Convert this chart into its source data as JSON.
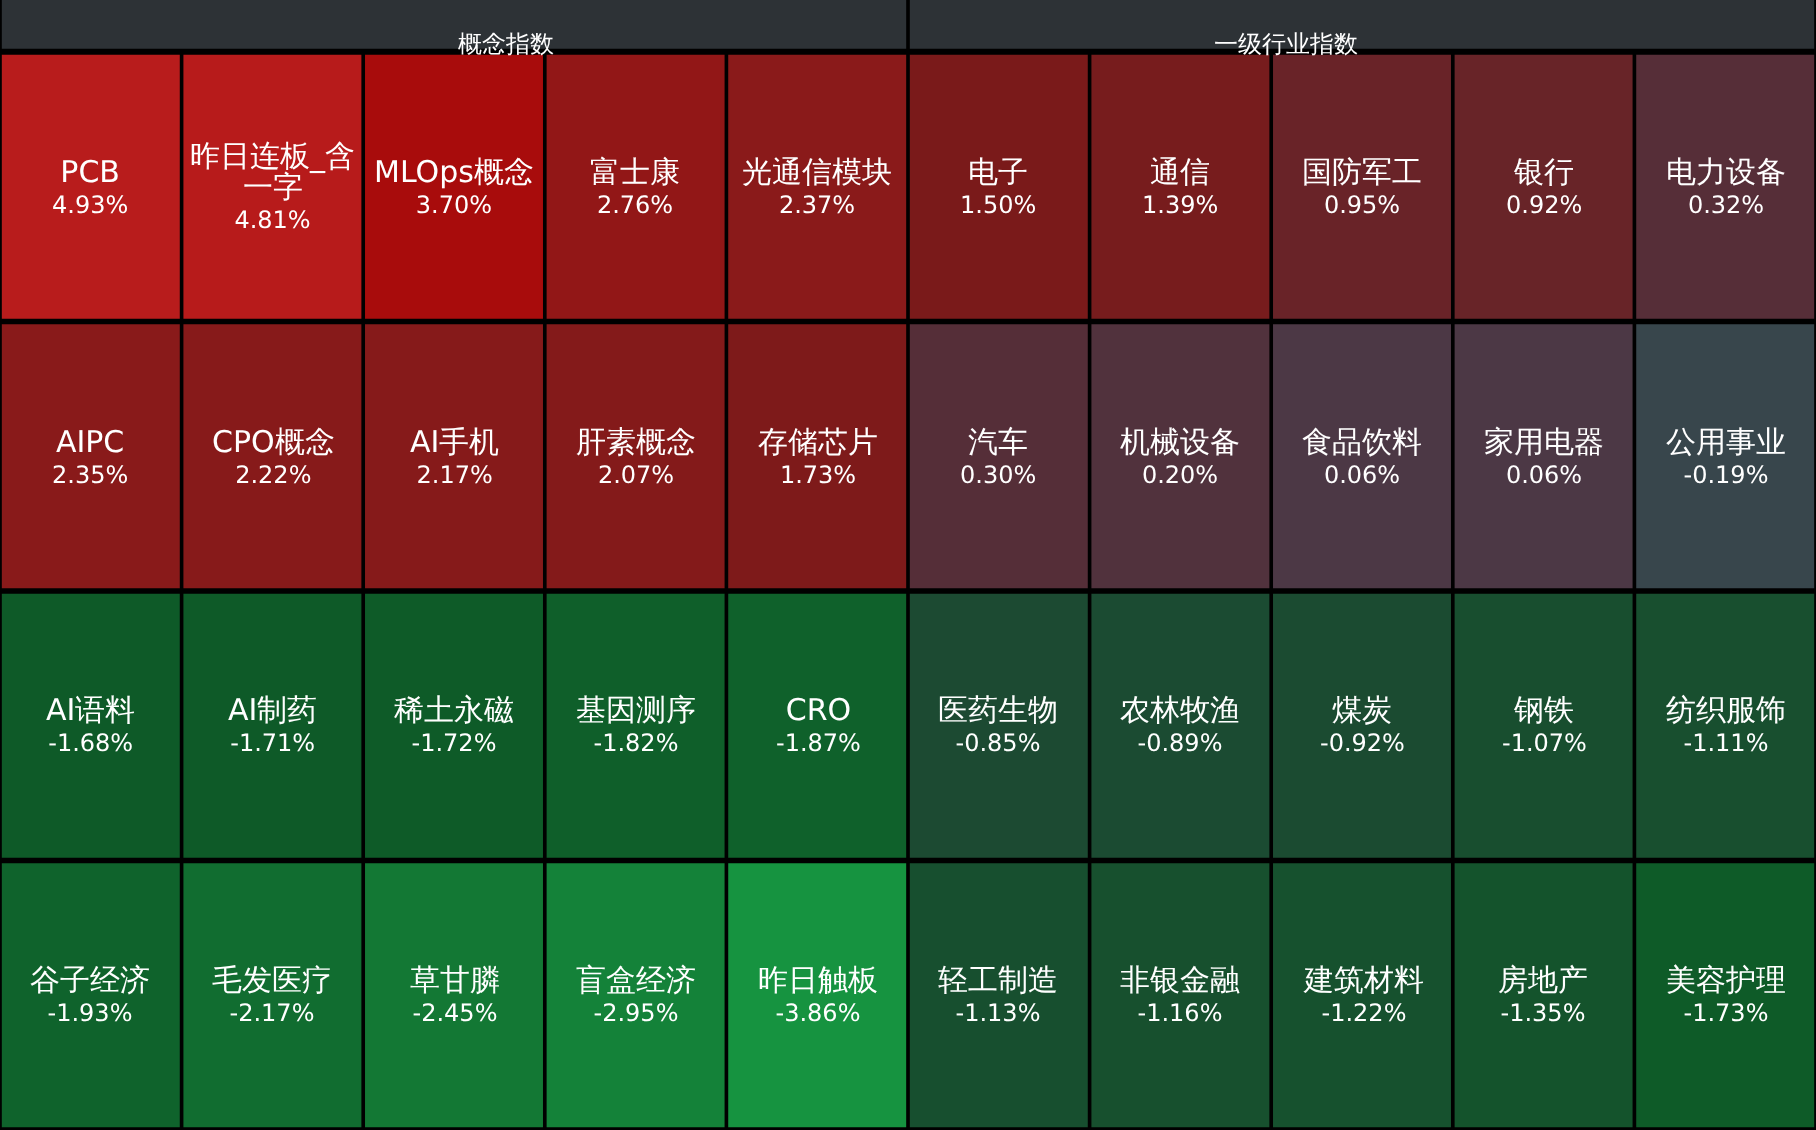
{
  "chart_data": [
    {
      "type": "other",
      "title": "概念指数",
      "categories": [
        "PCB",
        "昨日连板_含一字",
        "MLOps概念",
        "富士康",
        "光通信模块",
        "AIPC",
        "CPO概念",
        "AI手机",
        "肝素概念",
        "存储芯片",
        "AI语料",
        "AI制药",
        "稀土永磁",
        "基因测序",
        "CRO",
        "谷子经济",
        "毛发医疗",
        "草甘膦",
        "盲盒经济",
        "昨日触板"
      ],
      "values": [
        4.93,
        4.81,
        3.7,
        2.76,
        2.37,
        2.35,
        2.22,
        2.17,
        2.07,
        1.73,
        -1.68,
        -1.71,
        -1.72,
        -1.82,
        -1.87,
        -1.93,
        -2.17,
        -2.45,
        -2.95,
        -3.86
      ],
      "value_labels": [
        "4.93%",
        "4.81%",
        "3.70%",
        "2.76%",
        "2.37%",
        "2.35%",
        "2.22%",
        "2.17%",
        "2.07%",
        "1.73%",
        "-1.68%",
        "-1.71%",
        "-1.72%",
        "-1.82%",
        "-1.87%",
        "-1.93%",
        "-2.17%",
        "-2.45%",
        "-2.95%",
        "-3.86%"
      ]
    },
    {
      "type": "other",
      "title": "一级行业指数",
      "categories": [
        "电子",
        "通信",
        "国防军工",
        "银行",
        "电力设备",
        "汽车",
        "机械设备",
        "食品饮料",
        "家用电器",
        "公用事业",
        "医药生物",
        "农林牧渔",
        "煤炭",
        "钢铁",
        "纺织服饰",
        "轻工制造",
        "非银金融",
        "建筑材料",
        "房地产",
        "美容护理"
      ],
      "values": [
        1.5,
        1.39,
        0.95,
        0.92,
        0.32,
        0.3,
        0.2,
        0.06,
        0.06,
        -0.19,
        -0.85,
        -0.89,
        -0.92,
        -1.07,
        -1.11,
        -1.13,
        -1.16,
        -1.22,
        -1.35,
        -1.73
      ],
      "value_labels": [
        "1.50%",
        "1.39%",
        "0.95%",
        "0.92%",
        "0.32%",
        "0.30%",
        "0.20%",
        "0.06%",
        "0.06%",
        "-0.19%",
        "-0.85%",
        "-0.89%",
        "-0.92%",
        "-1.07%",
        "-1.11%",
        "-1.13%",
        "-1.16%",
        "-1.22%",
        "-1.35%",
        "-1.73%"
      ]
    }
  ]
}
